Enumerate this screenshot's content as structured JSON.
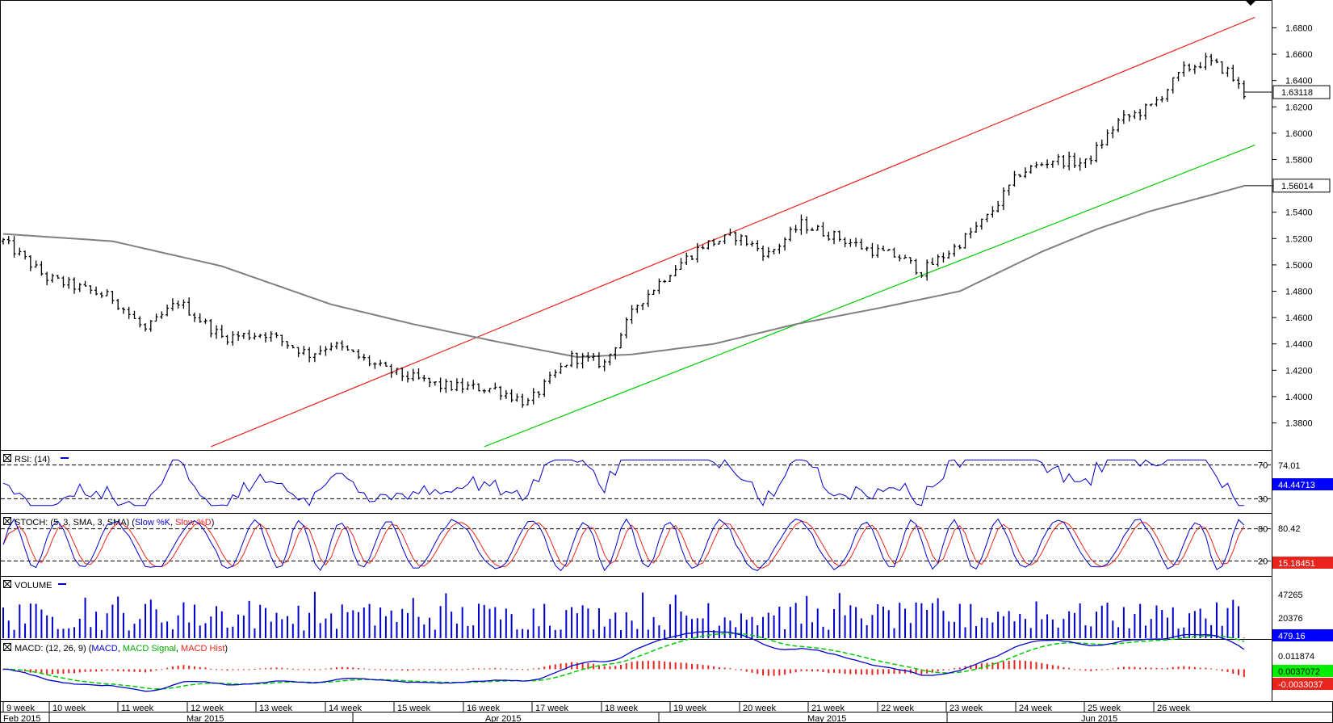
{
  "chart_data": [
    {
      "type": "ohlc",
      "panel": "price",
      "y_ticks": [
        "1.6800",
        "1.6600",
        "1.6400",
        "1.6200",
        "1.6000",
        "1.5800",
        "1.5600",
        "1.5400",
        "1.5200",
        "1.5000",
        "1.4800",
        "1.4600",
        "1.4400",
        "1.4200",
        "1.4000",
        "1.3800"
      ],
      "ylim": [
        1.365,
        1.695
      ],
      "last_price_label": "1.63118",
      "ma_label": "1.56014",
      "price_anchors": [
        [
          0,
          1.518
        ],
        [
          8,
          1.49
        ],
        [
          16,
          1.48
        ],
        [
          20,
          1.475
        ],
        [
          26,
          1.45
        ],
        [
          32,
          1.472
        ],
        [
          40,
          1.445
        ],
        [
          48,
          1.448
        ],
        [
          56,
          1.432
        ],
        [
          60,
          1.44
        ],
        [
          70,
          1.42
        ],
        [
          80,
          1.408
        ],
        [
          90,
          1.406
        ],
        [
          96,
          1.395
        ],
        [
          104,
          1.43
        ],
        [
          110,
          1.425
        ],
        [
          116,
          1.47
        ],
        [
          122,
          1.495
        ],
        [
          128,
          1.515
        ],
        [
          134,
          1.522
        ],
        [
          140,
          1.508
        ],
        [
          146,
          1.531
        ],
        [
          152,
          1.522
        ],
        [
          158,
          1.512
        ],
        [
          164,
          1.506
        ],
        [
          168,
          1.495
        ],
        [
          174,
          1.513
        ],
        [
          180,
          1.536
        ],
        [
          186,
          1.57
        ],
        [
          192,
          1.58
        ],
        [
          198,
          1.577
        ],
        [
          204,
          1.609
        ],
        [
          210,
          1.62
        ],
        [
          216,
          1.648
        ],
        [
          220,
          1.655
        ],
        [
          224,
          1.647
        ],
        [
          227,
          1.63
        ]
      ],
      "ma_anchors": [
        [
          0,
          1.5235
        ],
        [
          20,
          1.518
        ],
        [
          40,
          1.499
        ],
        [
          60,
          1.47
        ],
        [
          75,
          1.455
        ],
        [
          90,
          1.442
        ],
        [
          105,
          1.43
        ],
        [
          115,
          1.432
        ],
        [
          130,
          1.44
        ],
        [
          145,
          1.455
        ],
        [
          160,
          1.467
        ],
        [
          175,
          1.48
        ],
        [
          190,
          1.51
        ],
        [
          200,
          1.527
        ],
        [
          210,
          1.541
        ],
        [
          220,
          1.552
        ],
        [
          227,
          1.56
        ]
      ],
      "trend_lines": [
        {
          "name": "channel-top",
          "color": "#e8241c",
          "from": [
            38,
            1.362
          ],
          "to": [
            229,
            1.688
          ]
        },
        {
          "name": "channel-bottom",
          "color": "#00cc00",
          "from": [
            88,
            1.362
          ],
          "to": [
            229,
            1.591
          ]
        }
      ]
    },
    {
      "type": "line",
      "panel": "rsi",
      "title": "RSI: (14)",
      "levels": [
        "70",
        "30"
      ],
      "ylim": [
        15,
        85
      ],
      "value_label": "74.01",
      "last_label": "44.44713",
      "color": "#0000cc"
    },
    {
      "type": "line",
      "panel": "stoch",
      "title_prefix": "STOCH: (5, 3, SMA, 3, SMA) (",
      "series_names": [
        "Slow %K",
        "Slow %D"
      ],
      "levels": [
        "80",
        "20"
      ],
      "ylim": [
        -5,
        105
      ],
      "value_label": "80.42",
      "last_label": "15.18451",
      "colors": [
        "#0000cc",
        "#e8241c"
      ]
    },
    {
      "type": "bar",
      "panel": "volume",
      "title": "VOLUME",
      "ticks": [
        "47265",
        "20376"
      ],
      "ymax": 60000,
      "last_label": "479.16",
      "color": "#0000cc"
    },
    {
      "type": "line",
      "panel": "macd",
      "title_prefix": "MACD: (12, 26, 9) (",
      "series_names": [
        "MACD",
        "MACD Signal",
        "MACD Hist"
      ],
      "tick": "0.011874",
      "ylim": [
        -0.018,
        0.016
      ],
      "labels": [
        "0.0037072",
        "-0.0033037"
      ],
      "colors": [
        "#0000cc",
        "#00cc00",
        "#e8241c"
      ]
    }
  ],
  "time_axis": {
    "weeks": [
      "9 week",
      "10 week",
      "11 week",
      "12 week",
      "13 week",
      "14 week",
      "15 week",
      "16 week",
      "17 week",
      "18 week",
      "19 week",
      "20 week",
      "21 week",
      "22 week",
      "23 week",
      "24 week",
      "25 week",
      "26 week"
    ],
    "months": [
      "Feb 2015",
      "Mar 2015",
      "Apr 2015",
      "May 2015",
      "Jun 2015"
    ]
  },
  "colors": {
    "bars": "#000000",
    "ma": "#808080",
    "blue_label_bg": "#0000ff",
    "red_label_bg": "#e8241c",
    "green_label_bg": "#00ee00"
  }
}
